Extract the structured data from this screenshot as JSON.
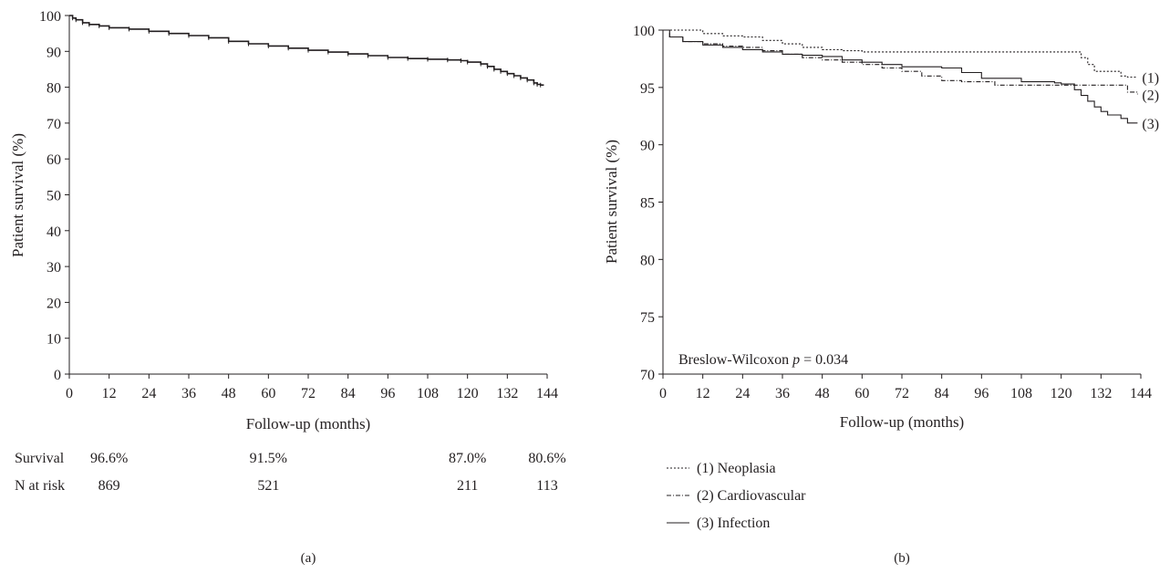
{
  "chart_data": [
    {
      "panel_label": "(a)",
      "type": "line",
      "title": "",
      "xlabel": "Follow-up (months)",
      "ylabel": "Patient survival (%)",
      "xlim": [
        0,
        144
      ],
      "ylim": [
        0,
        100
      ],
      "xticks": [
        "0",
        "12",
        "24",
        "36",
        "48",
        "60",
        "72",
        "84",
        "96",
        "108",
        "120",
        "132",
        "144"
      ],
      "yticks": [
        "0",
        "10",
        "20",
        "30",
        "40",
        "50",
        "60",
        "70",
        "80",
        "90",
        "100"
      ],
      "grid": false,
      "series": [
        {
          "color": "#231f20",
          "line_style": "solid",
          "x": [
            0,
            1,
            2,
            4,
            6,
            9,
            12,
            18,
            24,
            30,
            36,
            42,
            48,
            54,
            60,
            66,
            72,
            78,
            84,
            90,
            96,
            102,
            108,
            114,
            118,
            120,
            124,
            126,
            128,
            130,
            132,
            134,
            136,
            138,
            140,
            141,
            142,
            143
          ],
          "y": [
            100,
            99.3,
            98.8,
            98.0,
            97.5,
            97.1,
            96.6,
            96.2,
            95.6,
            95.0,
            94.4,
            93.8,
            92.8,
            92.1,
            91.5,
            90.9,
            90.3,
            89.8,
            89.3,
            88.8,
            88.3,
            88.0,
            87.8,
            87.6,
            87.4,
            87.0,
            86.5,
            85.8,
            85.0,
            84.4,
            83.8,
            83.2,
            82.6,
            82.0,
            81.2,
            80.8,
            80.6,
            80.6
          ]
        }
      ],
      "table": {
        "rows": [
          {
            "label": "Survival",
            "values": [
              "96.6%",
              "91.5%",
              "87.0%",
              "80.6%"
            ]
          },
          {
            "label": "N at risk",
            "values": [
              "869",
              "521",
              "211",
              "113"
            ]
          }
        ],
        "at_months": [
          12,
          60,
          120,
          144
        ]
      }
    },
    {
      "panel_label": "(b)",
      "type": "line",
      "title": "",
      "xlabel": "Follow-up (months)",
      "ylabel": "Patient survival (%)",
      "xlim": [
        0,
        144
      ],
      "ylim": [
        70,
        100
      ],
      "xticks": [
        "0",
        "12",
        "24",
        "36",
        "48",
        "60",
        "72",
        "84",
        "96",
        "108",
        "120",
        "132",
        "144"
      ],
      "yticks": [
        "70",
        "75",
        "80",
        "85",
        "90",
        "95",
        "100"
      ],
      "grid": false,
      "annotation": {
        "prefix": "Breslow-Wilcoxon ",
        "italic": "p",
        "suffix": " = 0.034"
      },
      "series": [
        {
          "name": "(1) Neoplasia",
          "end_label": "(1)",
          "color": "#231f20",
          "line_style": "dotted",
          "x": [
            0,
            6,
            12,
            18,
            24,
            30,
            36,
            42,
            48,
            54,
            60,
            72,
            84,
            96,
            108,
            120,
            125,
            126,
            128,
            130,
            132,
            136,
            138,
            140,
            143
          ],
          "y": [
            100,
            100,
            99.7,
            99.5,
            99.4,
            99.1,
            98.8,
            98.5,
            98.3,
            98.2,
            98.1,
            98.1,
            98.1,
            98.1,
            98.1,
            98.1,
            98.1,
            97.6,
            97.0,
            96.4,
            96.4,
            96.4,
            96.0,
            95.9,
            95.9
          ]
        },
        {
          "name": "(2) Cardiovascular",
          "end_label": "(2)",
          "color": "#231f20",
          "line_style": "dashdot",
          "x": [
            0,
            2,
            6,
            12,
            18,
            24,
            30,
            36,
            42,
            48,
            54,
            60,
            66,
            72,
            78,
            84,
            90,
            96,
            100,
            108,
            120,
            130,
            138,
            140,
            143
          ],
          "y": [
            100,
            99.4,
            99.0,
            98.8,
            98.6,
            98.5,
            98.2,
            97.9,
            97.6,
            97.4,
            97.2,
            97.0,
            96.7,
            96.4,
            96.0,
            95.6,
            95.5,
            95.5,
            95.2,
            95.2,
            95.2,
            95.2,
            95.2,
            94.6,
            94.4
          ]
        },
        {
          "name": "(3) Infection",
          "end_label": "(3)",
          "color": "#231f20",
          "line_style": "solid",
          "x": [
            0,
            2,
            6,
            12,
            18,
            24,
            30,
            36,
            42,
            48,
            54,
            60,
            66,
            72,
            78,
            84,
            90,
            96,
            108,
            118,
            120,
            124,
            126,
            128,
            130,
            132,
            134,
            136,
            138,
            140,
            143
          ],
          "y": [
            100,
            99.4,
            99.0,
            98.7,
            98.5,
            98.3,
            98.1,
            97.9,
            97.8,
            97.7,
            97.4,
            97.2,
            97.0,
            96.8,
            96.8,
            96.7,
            96.3,
            95.8,
            95.5,
            95.4,
            95.3,
            94.8,
            94.3,
            93.8,
            93.3,
            92.9,
            92.6,
            92.6,
            92.3,
            91.9,
            91.9
          ]
        }
      ]
    }
  ]
}
